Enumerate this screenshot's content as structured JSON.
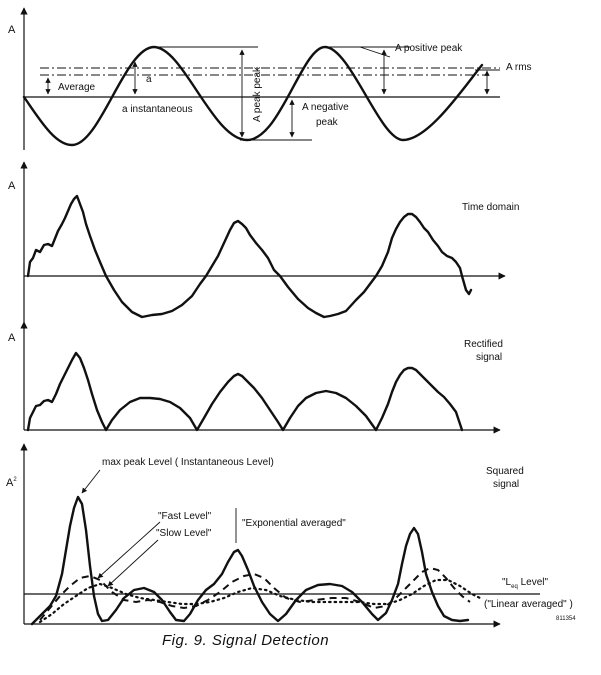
{
  "caption": "Fig. 9. Signal Detection",
  "panel1": {
    "axis_label": "A",
    "average": "Average",
    "a_small": "a",
    "a_instantaneous": "a   instantaneous",
    "a_peak_peak": "A peak peak",
    "a_positive_peak": "A positive peak",
    "a_rms": "A rms",
    "a_negative": "A negative",
    "peak": "peak"
  },
  "panel2": {
    "axis_label": "A",
    "title": "Time domain"
  },
  "panel3": {
    "axis_label": "A",
    "title_line1": "Rectified",
    "title_line2": "signal"
  },
  "panel4": {
    "axis_label": "A",
    "axis_sup": "2",
    "title_line1": "Squared",
    "title_line2": "signal",
    "max_peak": "max  peak Level   ( Instantaneous Level)",
    "fast_level": "\"Fast Level\"",
    "slow_level": "\"Slow Level\"",
    "exponential": "\"Exponential averaged\"",
    "leq_l": "\"L",
    "leq_sub": "eq",
    "leq_r": " Level\"",
    "linear": "(\"Linear averaged\" )",
    "fig_code": "811354"
  }
}
